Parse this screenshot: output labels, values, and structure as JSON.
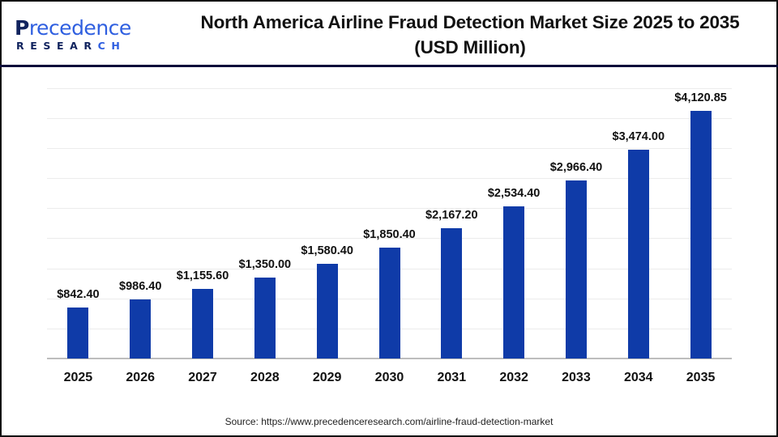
{
  "logo": {
    "top_first": "P",
    "top_rest": "recedence",
    "bottom_main": "RESEAR",
    "bottom_accent": "CH"
  },
  "title": {
    "line1": "North America Airline Fraud Detection Market Size 2025 to 2035",
    "line2": "(USD Million)"
  },
  "source": "Source: https://www.precedenceresearch.com/airline-fraud-detection-market",
  "colors": {
    "bar": "#0f3ba8",
    "header_rule": "#0b0b3a",
    "grid": "#ececec",
    "axis": "#bdbdbd"
  },
  "chart_data": {
    "type": "bar",
    "title": "North America Airline Fraud Detection Market Size 2025 to 2035 (USD Million)",
    "xlabel": "",
    "ylabel": "USD Million",
    "categories": [
      "2025",
      "2026",
      "2027",
      "2028",
      "2029",
      "2030",
      "2031",
      "2032",
      "2033",
      "2034",
      "2035"
    ],
    "values": [
      842.4,
      986.4,
      1155.6,
      1350.0,
      1580.4,
      1850.4,
      2167.2,
      2534.4,
      2966.4,
      3474.0,
      4120.85
    ],
    "value_labels": [
      "$842.40",
      "$986.40",
      "$1,155.60",
      "$1,350.00",
      "$1,580.40",
      "$1,850.40",
      "$2,167.20",
      "$2,534.40",
      "$2,966.40",
      "$3,474.00",
      "$4,120.85"
    ],
    "ylim": [
      0,
      4500
    ],
    "grid": true,
    "grid_step": 500,
    "y_axis_visible": false,
    "legend": null
  }
}
